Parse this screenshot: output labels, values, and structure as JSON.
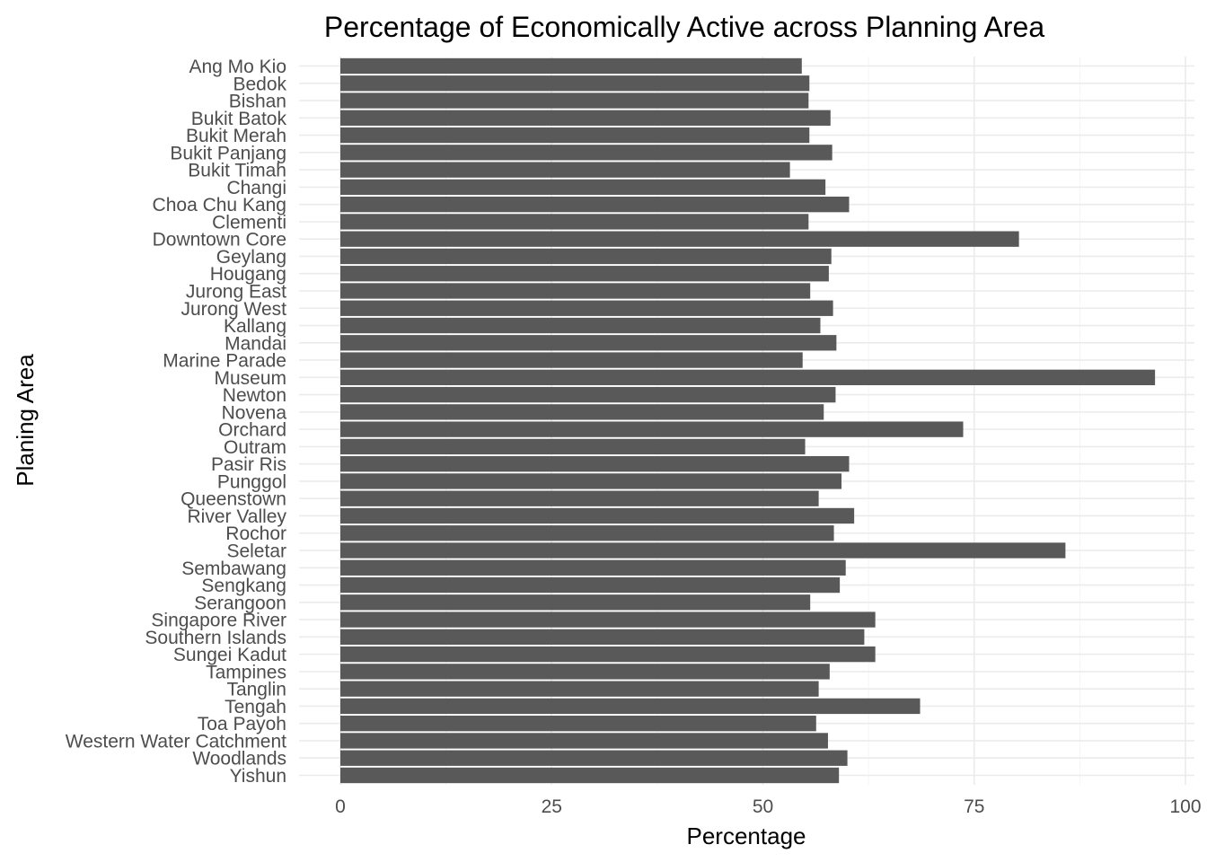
{
  "chart_data": {
    "type": "bar",
    "orientation": "horizontal",
    "title": "Percentage of Economically Active across Planning Area",
    "xlabel": "Percentage",
    "ylabel": "Planing Area",
    "xlim": [
      0,
      100
    ],
    "x_ticks": [
      "0",
      "25",
      "50",
      "75",
      "100"
    ],
    "bar_color": "#595959",
    "grid": true,
    "categories": [
      "Ang Mo Kio",
      "Bedok",
      "Bishan",
      "Bukit Batok",
      "Bukit Merah",
      "Bukit Panjang",
      "Bukit Timah",
      "Changi",
      "Choa Chu Kang",
      "Clementi",
      "Downtown Core",
      "Geylang",
      "Hougang",
      "Jurong East",
      "Jurong West",
      "Kallang",
      "Mandai",
      "Marine Parade",
      "Museum",
      "Newton",
      "Novena",
      "Orchard",
      "Outram",
      "Pasir Ris",
      "Punggol",
      "Queenstown",
      "River Valley",
      "Rochor",
      "Seletar",
      "Sembawang",
      "Sengkang",
      "Serangoon",
      "Singapore River",
      "Southern Islands",
      "Sungei Kadut",
      "Tampines",
      "Tanglin",
      "Tengah",
      "Toa Payoh",
      "Western Water Catchment",
      "Woodlands",
      "Yishun"
    ],
    "values": [
      54.6,
      55.5,
      55.4,
      58.0,
      55.5,
      58.2,
      53.2,
      57.4,
      60.2,
      55.4,
      80.3,
      58.1,
      57.8,
      55.6,
      58.3,
      56.8,
      58.7,
      54.7,
      96.4,
      58.6,
      57.2,
      73.7,
      55.0,
      60.2,
      59.3,
      56.6,
      60.8,
      58.4,
      85.8,
      59.8,
      59.1,
      55.6,
      63.3,
      62.0,
      63.3,
      57.9,
      56.6,
      68.6,
      56.3,
      57.7,
      60.0,
      59.0
    ]
  }
}
